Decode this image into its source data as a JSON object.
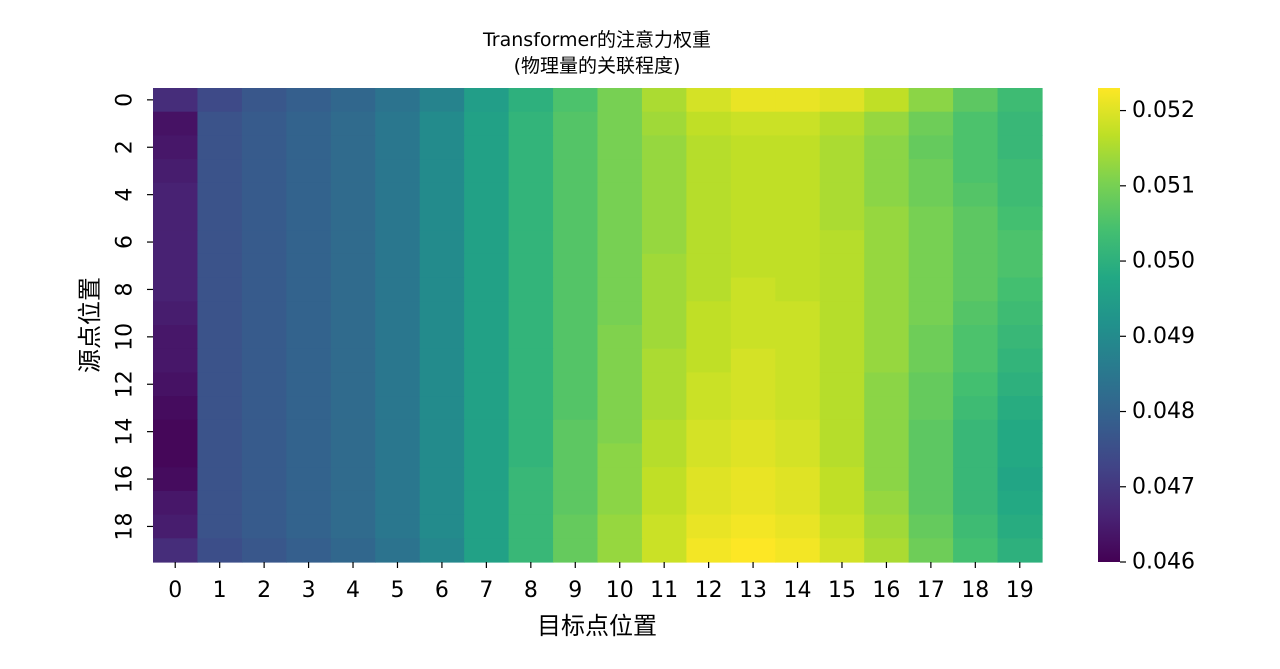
{
  "chart_data": {
    "type": "heatmap",
    "title": "Transformer的注意力权重",
    "subtitle": "(物理量的关联程度)",
    "xlabel": "目标点位置",
    "ylabel": "源点位置",
    "x_categories": [
      "0",
      "1",
      "2",
      "3",
      "4",
      "5",
      "6",
      "7",
      "8",
      "9",
      "10",
      "11",
      "12",
      "13",
      "14",
      "15",
      "16",
      "17",
      "18",
      "19"
    ],
    "y_categories": [
      "0",
      "1",
      "2",
      "3",
      "4",
      "5",
      "6",
      "7",
      "8",
      "9",
      "10",
      "11",
      "12",
      "13",
      "14",
      "15",
      "16",
      "17",
      "18",
      "19"
    ],
    "y_tick_labels": [
      "0",
      "2",
      "4",
      "6",
      "8",
      "10",
      "12",
      "14",
      "16",
      "18"
    ],
    "colormap": "viridis",
    "vmin": 0.046,
    "vmax": 0.0523,
    "colorbar_ticks": [
      "0.046",
      "0.047",
      "0.048",
      "0.049",
      "0.050",
      "0.051",
      "0.052"
    ],
    "colorbar_tick_values": [
      0.046,
      0.047,
      0.048,
      0.049,
      0.05,
      0.051,
      0.052
    ],
    "values": [
      [
        0.0468,
        0.0474,
        0.0477,
        0.0479,
        0.0481,
        0.0484,
        0.0488,
        0.0495,
        0.05,
        0.0505,
        0.051,
        0.0515,
        0.0519,
        0.0521,
        0.0521,
        0.052,
        0.0517,
        0.0512,
        0.0507,
        0.0503
      ],
      [
        0.0463,
        0.0476,
        0.0478,
        0.048,
        0.0482,
        0.0485,
        0.049,
        0.0496,
        0.0501,
        0.0506,
        0.051,
        0.0514,
        0.0517,
        0.0518,
        0.0518,
        0.0516,
        0.0513,
        0.0509,
        0.0505,
        0.0502
      ],
      [
        0.0464,
        0.0476,
        0.0478,
        0.048,
        0.0482,
        0.0485,
        0.049,
        0.0496,
        0.0501,
        0.0506,
        0.051,
        0.0513,
        0.0516,
        0.0517,
        0.0517,
        0.0515,
        0.0512,
        0.0508,
        0.0505,
        0.0502
      ],
      [
        0.0465,
        0.0476,
        0.0478,
        0.048,
        0.0482,
        0.0485,
        0.049,
        0.0496,
        0.0501,
        0.0506,
        0.051,
        0.0513,
        0.0516,
        0.0517,
        0.0517,
        0.0515,
        0.0512,
        0.0509,
        0.0505,
        0.0503
      ],
      [
        0.0466,
        0.0476,
        0.0478,
        0.048,
        0.0482,
        0.0485,
        0.049,
        0.0496,
        0.0501,
        0.0506,
        0.051,
        0.0513,
        0.0516,
        0.0517,
        0.0517,
        0.0515,
        0.0512,
        0.0509,
        0.0506,
        0.0503
      ],
      [
        0.0466,
        0.0476,
        0.0478,
        0.048,
        0.0482,
        0.0485,
        0.049,
        0.0496,
        0.0501,
        0.0506,
        0.051,
        0.0513,
        0.0516,
        0.0517,
        0.0517,
        0.0515,
        0.0513,
        0.051,
        0.0507,
        0.0504
      ],
      [
        0.0466,
        0.0476,
        0.0478,
        0.048,
        0.0482,
        0.0485,
        0.049,
        0.0496,
        0.0501,
        0.0506,
        0.051,
        0.0513,
        0.0516,
        0.0517,
        0.0517,
        0.0516,
        0.0513,
        0.051,
        0.0507,
        0.0505
      ],
      [
        0.0466,
        0.0476,
        0.0478,
        0.048,
        0.0482,
        0.0485,
        0.049,
        0.0496,
        0.0501,
        0.0506,
        0.051,
        0.0514,
        0.0516,
        0.0517,
        0.0517,
        0.0516,
        0.0513,
        0.051,
        0.0507,
        0.0505
      ],
      [
        0.0466,
        0.0476,
        0.0478,
        0.048,
        0.0482,
        0.0485,
        0.049,
        0.0496,
        0.0501,
        0.0506,
        0.051,
        0.0514,
        0.0516,
        0.0518,
        0.0517,
        0.0516,
        0.0513,
        0.051,
        0.0507,
        0.0504
      ],
      [
        0.0465,
        0.0476,
        0.0478,
        0.048,
        0.0482,
        0.0485,
        0.049,
        0.0496,
        0.0501,
        0.0506,
        0.051,
        0.0514,
        0.0517,
        0.0518,
        0.0518,
        0.0516,
        0.0513,
        0.051,
        0.0506,
        0.0503
      ],
      [
        0.0464,
        0.0476,
        0.0478,
        0.048,
        0.0482,
        0.0485,
        0.049,
        0.0496,
        0.0501,
        0.0506,
        0.0511,
        0.0514,
        0.0517,
        0.0518,
        0.0518,
        0.0516,
        0.0513,
        0.0509,
        0.0505,
        0.0502
      ],
      [
        0.0464,
        0.0476,
        0.0478,
        0.048,
        0.0482,
        0.0485,
        0.049,
        0.0496,
        0.0501,
        0.0506,
        0.0511,
        0.0515,
        0.0517,
        0.0519,
        0.0518,
        0.0516,
        0.0513,
        0.0509,
        0.0505,
        0.0501
      ],
      [
        0.0463,
        0.0476,
        0.0478,
        0.048,
        0.0482,
        0.0485,
        0.049,
        0.0496,
        0.0501,
        0.0506,
        0.0511,
        0.0515,
        0.0518,
        0.0519,
        0.0518,
        0.0516,
        0.0512,
        0.0508,
        0.0504,
        0.05
      ],
      [
        0.0462,
        0.0476,
        0.0478,
        0.048,
        0.0482,
        0.0485,
        0.049,
        0.0496,
        0.0501,
        0.0506,
        0.0511,
        0.0515,
        0.0518,
        0.0519,
        0.0518,
        0.0516,
        0.0512,
        0.0508,
        0.0503,
        0.0499
      ],
      [
        0.0461,
        0.0476,
        0.0478,
        0.048,
        0.0482,
        0.0485,
        0.049,
        0.0496,
        0.0501,
        0.0507,
        0.0511,
        0.0516,
        0.0519,
        0.052,
        0.0519,
        0.0516,
        0.0512,
        0.0507,
        0.0502,
        0.0498
      ],
      [
        0.0461,
        0.0476,
        0.0478,
        0.048,
        0.0482,
        0.0485,
        0.049,
        0.0496,
        0.0501,
        0.0507,
        0.0512,
        0.0516,
        0.0519,
        0.052,
        0.0519,
        0.0516,
        0.0512,
        0.0507,
        0.0502,
        0.0498
      ],
      [
        0.0462,
        0.0476,
        0.0478,
        0.048,
        0.0482,
        0.0485,
        0.049,
        0.0496,
        0.0502,
        0.0507,
        0.0512,
        0.0517,
        0.052,
        0.0521,
        0.052,
        0.0517,
        0.0512,
        0.0507,
        0.0502,
        0.0497
      ],
      [
        0.0464,
        0.0476,
        0.0478,
        0.048,
        0.0482,
        0.0485,
        0.049,
        0.0496,
        0.0502,
        0.0507,
        0.0512,
        0.0517,
        0.052,
        0.0521,
        0.052,
        0.0517,
        0.0513,
        0.0507,
        0.0502,
        0.0498
      ],
      [
        0.0465,
        0.0476,
        0.0478,
        0.048,
        0.0482,
        0.0485,
        0.049,
        0.0496,
        0.0502,
        0.0508,
        0.0513,
        0.0518,
        0.0521,
        0.0522,
        0.0521,
        0.0518,
        0.0514,
        0.0508,
        0.0503,
        0.0499
      ],
      [
        0.0468,
        0.0475,
        0.0477,
        0.0479,
        0.0481,
        0.0484,
        0.0489,
        0.0496,
        0.0502,
        0.0508,
        0.0513,
        0.0518,
        0.0522,
        0.0523,
        0.0522,
        0.0519,
        0.0515,
        0.0509,
        0.0504,
        0.05
      ]
    ]
  }
}
